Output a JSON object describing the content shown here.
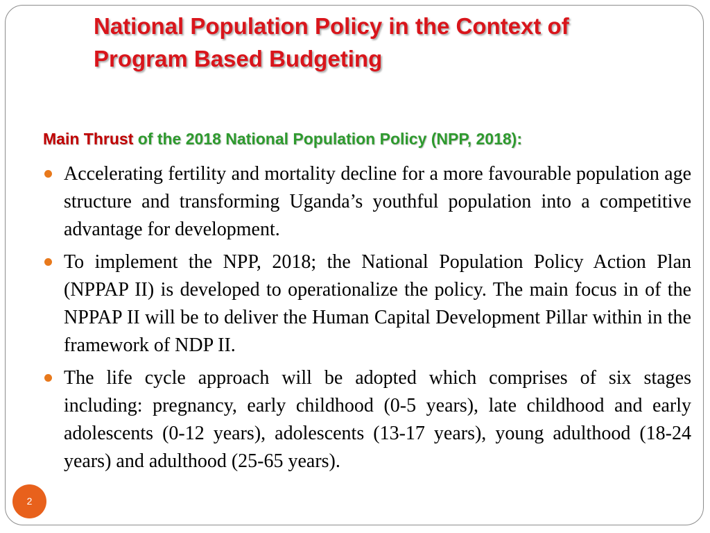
{
  "slide": {
    "title_lines": [
      "National Population Policy in the Context of",
      "Program Based Budgeting"
    ],
    "subheading": {
      "lead": "Main Thrust ",
      "rest": "of the 2018 National Population Policy  (NPP, 2018):"
    },
    "bullets": [
      {
        "icon": "bullet-dot-icon",
        "text": "Accelerating fertility and mortality decline for a more favourable population age structure and transforming Uganda’s youthful population into a competitive advantage for development."
      },
      {
        "icon": "bullet-dot-icon",
        "text": "To implement the NPP, 2018; the National Population Policy Action Plan (NPPAP II) is developed to  operationalize the policy. The main focus in of the NPPAP II will be to deliver the Human Capital Development Pillar within in the framework of NDP II."
      },
      {
        "icon": "bullet-dot-icon",
        "text": "The life cycle approach will be adopted which comprises of six stages including: pregnancy, early childhood (0-5 years), late childhood and early adolescents (0-12 years), adolescents (13-17 years), young adulthood (18-24 years) and adulthood (25-65 years)."
      }
    ],
    "page_number": "2",
    "colors": {
      "title": "#d9151b",
      "subheading_lead": "#c00000",
      "subheading_rest": "#2e9a2e",
      "bullet": "#e8791c",
      "page_badge": "#e8611c"
    }
  }
}
